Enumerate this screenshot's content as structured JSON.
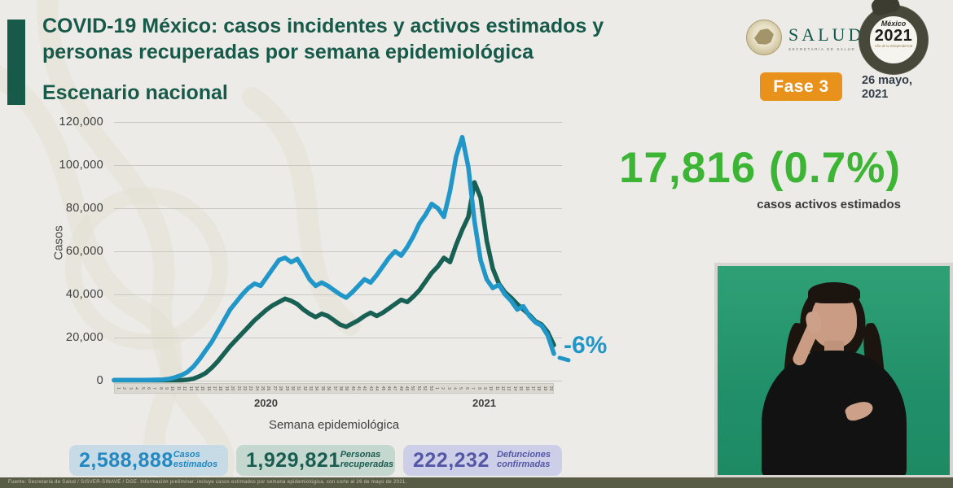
{
  "header": {
    "title_line1": "COVID-19 México: casos incidentes y activos estimados y",
    "title_line2": "personas recuperadas por semana epidemiológica",
    "section_title": "Escenario nacional",
    "phase_badge": "Fase 3",
    "date_line1": "26 mayo,",
    "date_line2": "2021",
    "salud_logo": {
      "name": "SALUD",
      "subtitle": "SECRETARÍA DE SALUD"
    },
    "mx2021_logo": {
      "top": "México",
      "year": "2021",
      "subtitle": "Año de la Independencia"
    }
  },
  "highlight": {
    "value": "17,816 (0.7%)",
    "caption": "casos activos estimados",
    "color": "#3cb534"
  },
  "chart_data": {
    "type": "line",
    "title": "Escenario nacional",
    "xlabel": "Semana epidemiológica",
    "ylabel": "Casos",
    "ylim": [
      0,
      120000
    ],
    "grid": true,
    "legend": "none",
    "y_ticks": [
      "120,000",
      "100,000",
      "80,000",
      "60,000",
      "40,000",
      "20,000",
      "0"
    ],
    "year_labels": [
      "2020",
      "2021"
    ],
    "categories": [
      "1",
      "2",
      "3",
      "4",
      "5",
      "6",
      "7",
      "8",
      "9",
      "10",
      "11",
      "12",
      "13",
      "14",
      "15",
      "16",
      "17",
      "18",
      "19",
      "20",
      "21",
      "22",
      "23",
      "24",
      "25",
      "26",
      "27",
      "28",
      "29",
      "30",
      "31",
      "32",
      "33",
      "34",
      "35",
      "36",
      "37",
      "38",
      "39",
      "40",
      "41",
      "42",
      "43",
      "44",
      "45",
      "46",
      "47",
      "48",
      "49",
      "50",
      "51",
      "52",
      "53",
      "1",
      "2",
      "3",
      "4",
      "5",
      "6",
      "7",
      "8",
      "9",
      "10",
      "11",
      "12",
      "13",
      "14",
      "15",
      "16",
      "17",
      "18",
      "19",
      "20"
    ],
    "series": [
      {
        "name": "Casos incidentes estimados",
        "color": "#2196c9",
        "values": [
          300,
          300,
          300,
          300,
          300,
          300,
          350,
          400,
          500,
          800,
          1500,
          2500,
          4000,
          6500,
          10000,
          14000,
          18000,
          23000,
          28000,
          33000,
          36500,
          40000,
          43000,
          45000,
          44000,
          48000,
          52000,
          56000,
          57000,
          55000,
          56500,
          52000,
          47000,
          44000,
          45500,
          44000,
          42000,
          40000,
          38500,
          41000,
          44000,
          47000,
          45500,
          49000,
          53000,
          57000,
          60000,
          58000,
          62000,
          67000,
          73000,
          77000,
          82000,
          80000,
          76000,
          88000,
          104000,
          113000,
          99000,
          74000,
          56000,
          47000,
          43000,
          44500,
          40000,
          37000,
          33000,
          34500,
          30000,
          27000,
          25500,
          21000,
          12500
        ]
      },
      {
        "name": "Personas recuperadas",
        "color": "#186053",
        "values": [
          200,
          200,
          200,
          200,
          200,
          200,
          200,
          200,
          200,
          200,
          200,
          200,
          400,
          900,
          2000,
          3500,
          6000,
          9000,
          12500,
          16000,
          19000,
          22000,
          25000,
          28000,
          30500,
          33000,
          35000,
          36500,
          38000,
          37000,
          35500,
          33000,
          31000,
          29500,
          31000,
          30000,
          28000,
          26000,
          25000,
          26500,
          28000,
          30000,
          31500,
          30000,
          31500,
          33500,
          35500,
          37500,
          36500,
          39000,
          42000,
          46000,
          50000,
          53000,
          57000,
          55000,
          63000,
          70000,
          76000,
          92000,
          85000,
          65000,
          52000,
          45000,
          41000,
          38500,
          35500,
          33000,
          30500,
          27500,
          26000,
          22500,
          16500
        ]
      }
    ],
    "annotation": {
      "text": "-6%",
      "color": "#2196c9"
    }
  },
  "stats": [
    {
      "value": "2,588,888",
      "label_line1": "Casos",
      "label_line2": "estimados",
      "number_color": "#2288c2",
      "bg": "#c7dbe6"
    },
    {
      "value": "1,929,821",
      "label_line1": "Personas",
      "label_line2": "recuperadas",
      "number_color": "#1a5c50",
      "bg": "#c5d8d0"
    },
    {
      "value": "222,232",
      "label_line1": "Defunciones",
      "label_line2": "confirmadas",
      "number_color": "#5457a6",
      "bg": "#cdcfe9"
    }
  ],
  "footnote": "Fuente: Secretaría de Salud / SISVER-SINAVE / DGE. Información preliminar; incluye casos estimados por semana epidemiológica, con corte al 26 de mayo de 2021."
}
